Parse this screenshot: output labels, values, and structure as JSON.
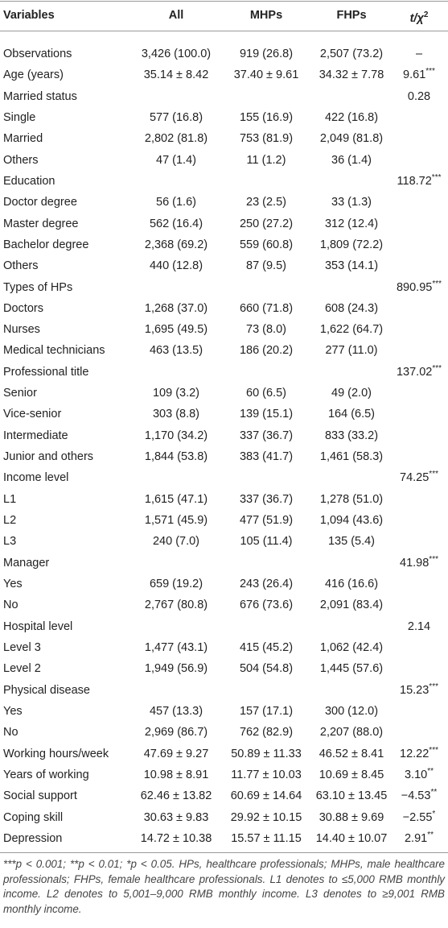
{
  "table": {
    "header": [
      "Variables",
      "All",
      "MHPs",
      "FHPs",
      {
        "text": "t/χ",
        "sup": "2"
      }
    ],
    "rows": [
      [
        "Observations",
        "3,426 (100.0)",
        "919 (26.8)",
        "2,507 (73.2)",
        "–"
      ],
      [
        "Age (years)",
        "35.14 ± 8.42",
        "37.40 ± 9.61",
        "34.32 ± 7.78",
        "9.61***"
      ],
      [
        "Married status",
        null,
        null,
        null,
        "0.28"
      ],
      [
        "Single",
        "577 (16.8)",
        "155 (16.9)",
        "422 (16.8)",
        null
      ],
      [
        "Married",
        "2,802 (81.8)",
        "753 (81.9)",
        "2,049 (81.8)",
        null
      ],
      [
        "Others",
        "47 (1.4)",
        "11 (1.2)",
        "36 (1.4)",
        null
      ],
      [
        "Education",
        null,
        null,
        null,
        "118.72***"
      ],
      [
        "Doctor degree",
        "56 (1.6)",
        "23 (2.5)",
        "33 (1.3)",
        null
      ],
      [
        "Master degree",
        "562 (16.4)",
        "250 (27.2)",
        "312 (12.4)",
        null
      ],
      [
        "Bachelor degree",
        "2,368 (69.2)",
        "559 (60.8)",
        "1,809 (72.2)",
        null
      ],
      [
        "Others",
        "440 (12.8)",
        "87 (9.5)",
        "353 (14.1)",
        null
      ],
      [
        "Types of HPs",
        null,
        null,
        null,
        "890.95***"
      ],
      [
        "Doctors",
        "1,268 (37.0)",
        "660 (71.8)",
        "608 (24.3)",
        null
      ],
      [
        "Nurses",
        "1,695 (49.5)",
        "73 (8.0)",
        "1,622 (64.7)",
        null
      ],
      [
        "Medical technicians",
        "463 (13.5)",
        "186 (20.2)",
        "277 (11.0)",
        null
      ],
      [
        "Professional title",
        null,
        null,
        null,
        "137.02***"
      ],
      [
        "Senior",
        "109 (3.2)",
        "60 (6.5)",
        "49 (2.0)",
        null
      ],
      [
        "Vice-senior",
        "303 (8.8)",
        "139 (15.1)",
        "164 (6.5)",
        null
      ],
      [
        "Intermediate",
        "1,170 (34.2)",
        "337 (36.7)",
        "833 (33.2)",
        null
      ],
      [
        "Junior and others",
        "1,844 (53.8)",
        "383 (41.7)",
        "1,461 (58.3)",
        null
      ],
      [
        "Income level",
        null,
        null,
        null,
        "74.25***"
      ],
      [
        "L1",
        "1,615 (47.1)",
        "337 (36.7)",
        "1,278 (51.0)",
        null
      ],
      [
        "L2",
        "1,571 (45.9)",
        "477 (51.9)",
        "1,094 (43.6)",
        null
      ],
      [
        "L3",
        "240 (7.0)",
        "105 (11.4)",
        "135 (5.4)",
        null
      ],
      [
        "Manager",
        null,
        null,
        null,
        "41.98***"
      ],
      [
        "Yes",
        "659 (19.2)",
        "243 (26.4)",
        "416 (16.6)",
        null
      ],
      [
        "No",
        "2,767 (80.8)",
        "676 (73.6)",
        "2,091 (83.4)",
        null
      ],
      [
        "Hospital level",
        null,
        null,
        null,
        "2.14"
      ],
      [
        "Level 3",
        "1,477 (43.1)",
        "415 (45.2)",
        "1,062 (42.4)",
        null
      ],
      [
        "Level 2",
        "1,949 (56.9)",
        "504 (54.8)",
        "1,445 (57.6)",
        null
      ],
      [
        "Physical disease",
        null,
        null,
        null,
        "15.23***"
      ],
      [
        "Yes",
        "457 (13.3)",
        "157 (17.1)",
        "300 (12.0)",
        null
      ],
      [
        "No",
        "2,969 (86.7)",
        "762 (82.9)",
        "2,207 (88.0)",
        null
      ],
      [
        "Working hours/week",
        "47.69 ± 9.27",
        "50.89 ± 11.33",
        "46.52 ± 8.41",
        "12.22***"
      ],
      [
        "Years of working",
        "10.98 ± 8.91",
        "11.77 ± 10.03",
        "10.69 ± 8.45",
        "3.10**"
      ],
      [
        "Social support",
        "62.46 ± 13.82",
        "60.69 ± 14.64",
        "63.10 ± 13.45",
        "−4.53**"
      ],
      [
        "Coping skill",
        "30.63 ± 9.83",
        "29.92 ± 10.15",
        "30.88 ± 9.69",
        "−2.55*"
      ],
      [
        "Depression",
        "14.72 ± 10.38",
        "15.57 ± 11.15",
        "14.40 ± 10.07",
        "2.91**"
      ]
    ],
    "footnote": "***p < 0.001; **p < 0.01; *p < 0.05. HPs, healthcare professionals; MHPs, male healthcare professionals; FHPs, female healthcare professionals. L1 denotes to ≤5,000 RMB monthly income. L2 denotes to 5,001–9,000 RMB monthly income. L3 denotes to ≥9,001 RMB monthly income."
  }
}
